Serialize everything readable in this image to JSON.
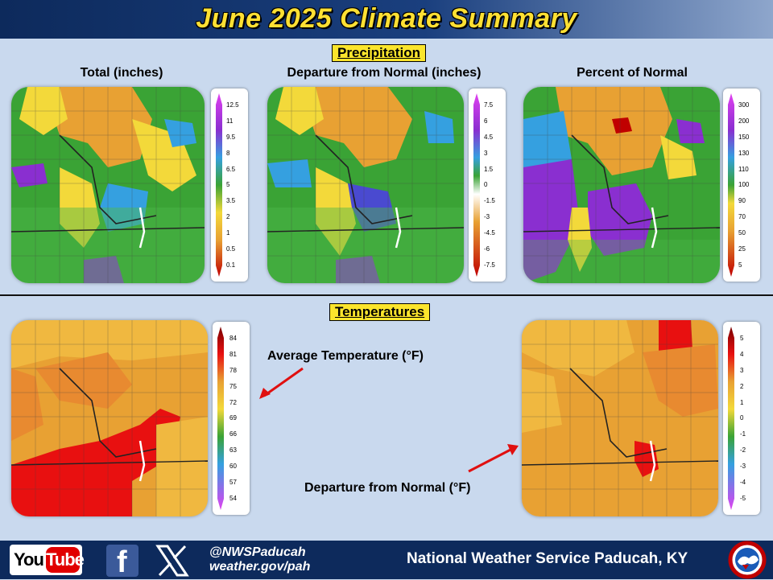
{
  "title": "June 2025 Climate Summary",
  "sections": {
    "precipitation": "Precipitation",
    "temperatures": "Temperatures"
  },
  "precip": {
    "total_title": "Total (inches)",
    "departure_title": "Departure from Normal (inches)",
    "percent_title": "Percent of Normal",
    "total_scale": [
      "12.5",
      "11",
      "9.5",
      "8",
      "6.5",
      "5",
      "3.5",
      "2",
      "1",
      "0.5",
      "0.1"
    ],
    "departure_scale": [
      "7.5",
      "6",
      "4.5",
      "3",
      "1.5",
      "0",
      "-1.5",
      "-3",
      "-4.5",
      "-6",
      "-7.5"
    ],
    "percent_scale": [
      "300",
      "200",
      "150",
      "130",
      "110",
      "100",
      "90",
      "70",
      "50",
      "25",
      "5"
    ]
  },
  "temps": {
    "avg_label": "Average Temperature (°F)",
    "dep_label": "Departure from Normal (°F)",
    "avg_scale": [
      "84",
      "81",
      "78",
      "75",
      "72",
      "69",
      "66",
      "63",
      "60",
      "57",
      "54"
    ],
    "dep_scale": [
      "5",
      "4",
      "3",
      "2",
      "1",
      "0",
      "-1",
      "-2",
      "-3",
      "-4",
      "-5"
    ]
  },
  "footer": {
    "youtube_you": "You",
    "youtube_tube": "Tube",
    "facebook": "f",
    "handle": "@NWSPaducah",
    "website": "weather.gov/pah",
    "office": "National Weather Service Paducah, KY"
  },
  "colors": {
    "header_bg": "#0d2a5c",
    "title_yellow": "#ffe033",
    "page_bg": "#c9d9ee",
    "arrow_red": "#e01010"
  },
  "icons": [
    "youtube-logo",
    "facebook-icon",
    "x-icon",
    "nws-logo"
  ]
}
